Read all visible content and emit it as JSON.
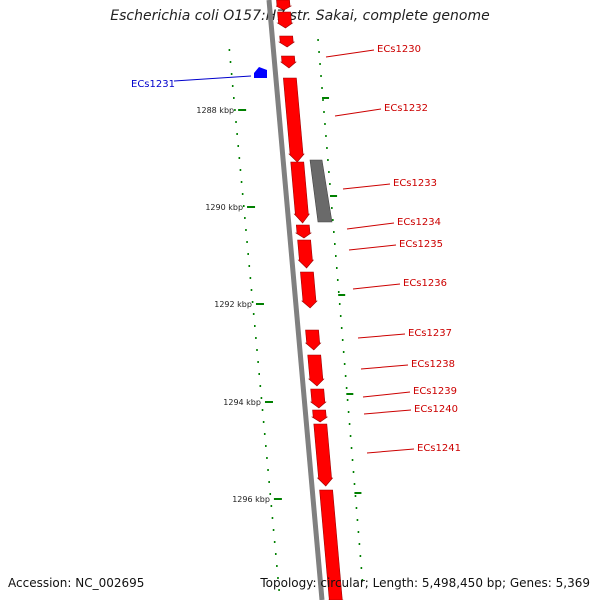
{
  "title": "Escherichia coli O157:H7 str. Sakai, complete genome",
  "footer": {
    "accession": "Accession: NC_002695",
    "topology": "Topology: circular; Length: 5,498,450 bp; Genes: 5,369"
  },
  "colors": {
    "forward_gene": "#ff0000",
    "other_feature": "#6a6a6a",
    "selected_gene": "#0000ff",
    "tick": "#008000",
    "backbone": "#808080"
  },
  "kbp_ticks": [
    "1288 kbp",
    "1290 kbp",
    "1292 kbp",
    "1294 kbp",
    "1296 kbp"
  ],
  "genes": [
    {
      "name": "ECs1230",
      "color": "#cc0000"
    },
    {
      "name": "ECs1231",
      "color": "#0000cc"
    },
    {
      "name": "ECs1232",
      "color": "#cc0000"
    },
    {
      "name": "ECs1233",
      "color": "#cc0000"
    },
    {
      "name": "ECs1234",
      "color": "#cc0000"
    },
    {
      "name": "ECs1235",
      "color": "#cc0000"
    },
    {
      "name": "ECs1236",
      "color": "#cc0000"
    },
    {
      "name": "ECs1237",
      "color": "#cc0000"
    },
    {
      "name": "ECs1238",
      "color": "#cc0000"
    },
    {
      "name": "ECs1239",
      "color": "#cc0000"
    },
    {
      "name": "ECs1240",
      "color": "#cc0000"
    },
    {
      "name": "ECs1241",
      "color": "#cc0000"
    }
  ]
}
